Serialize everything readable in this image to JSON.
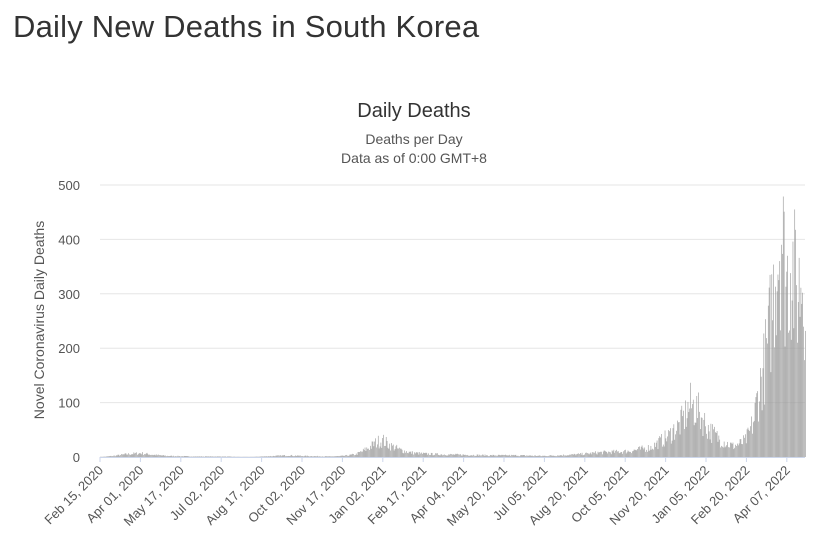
{
  "page": {
    "title": "Daily New Deaths in South Korea"
  },
  "chart_data": {
    "type": "bar",
    "title": "Daily Deaths",
    "subtitle": [
      "Deaths per Day",
      "Data as of 0:00 GMT+8"
    ],
    "ylabel": "Novel Coronavirus Daily Deaths",
    "xlabel": "",
    "ylim": [
      0,
      500
    ],
    "yticks": [
      0,
      100,
      200,
      300,
      400,
      500
    ],
    "grid": true,
    "legend": "none",
    "bar_color": "#999999",
    "x_start": "2020-02-15",
    "x_end": "2022-04-24",
    "xtick_labels": [
      "Feb 15, 2020",
      "Apr 01, 2020",
      "May 17, 2020",
      "Jul 02, 2020",
      "Aug 17, 2020",
      "Oct 02, 2020",
      "Nov 17, 2020",
      "Jan 02, 2021",
      "Feb 17, 2021",
      "Apr 04, 2021",
      "May 20, 2021",
      "Jul 05, 2021",
      "Aug 20, 2021",
      "Oct 05, 2021",
      "Nov 20, 2021",
      "Jan 05, 2022",
      "Feb 20, 2022",
      "Apr 07, 2022"
    ],
    "series": [
      {
        "name": "",
        "x": [
          "2020-02-15",
          "2020-03-01",
          "2020-03-15",
          "2020-04-01",
          "2020-04-15",
          "2020-05-01",
          "2020-06-01",
          "2020-07-01",
          "2020-08-01",
          "2020-09-01",
          "2020-09-15",
          "2020-10-01",
          "2020-11-01",
          "2020-11-17",
          "2020-12-01",
          "2020-12-10",
          "2020-12-20",
          "2020-12-25",
          "2021-01-01",
          "2021-01-05",
          "2021-01-10",
          "2021-01-20",
          "2021-02-01",
          "2021-02-15",
          "2021-03-01",
          "2021-04-01",
          "2021-05-01",
          "2021-06-01",
          "2021-07-01",
          "2021-08-01",
          "2021-08-20",
          "2021-09-01",
          "2021-09-15",
          "2021-10-01",
          "2021-10-15",
          "2021-11-01",
          "2021-11-10",
          "2021-11-20",
          "2021-11-25",
          "2021-12-01",
          "2021-12-05",
          "2021-12-10",
          "2021-12-15",
          "2021-12-20",
          "2021-12-25",
          "2022-01-01",
          "2022-01-05",
          "2022-01-15",
          "2022-01-25",
          "2022-02-01",
          "2022-02-10",
          "2022-02-15",
          "2022-02-20",
          "2022-02-25",
          "2022-03-01",
          "2022-03-05",
          "2022-03-10",
          "2022-03-13",
          "2022-03-16",
          "2022-03-19",
          "2022-03-22",
          "2022-03-24",
          "2022-03-26",
          "2022-03-28",
          "2022-03-31",
          "2022-04-03",
          "2022-04-05",
          "2022-04-07",
          "2022-04-09",
          "2022-04-11",
          "2022-04-14",
          "2022-04-17",
          "2022-04-20",
          "2022-04-22",
          "2022-04-24"
        ],
        "values": [
          0,
          2,
          5,
          7,
          4,
          2,
          1,
          1,
          0,
          2,
          3,
          2,
          1,
          2,
          5,
          12,
          22,
          28,
          30,
          25,
          20,
          13,
          8,
          6,
          5,
          4,
          3,
          3,
          2,
          4,
          6,
          8,
          9,
          10,
          13,
          18,
          28,
          38,
          48,
          55,
          65,
          80,
          95,
          90,
          80,
          60,
          50,
          35,
          25,
          20,
          25,
          30,
          45,
          70,
          110,
          140,
          180,
          210,
          260,
          300,
          360,
          380,
          400,
          430,
          350,
          320,
          340,
          370,
          360,
          330,
          300,
          310,
          340,
          330,
          310
        ]
      }
    ]
  }
}
